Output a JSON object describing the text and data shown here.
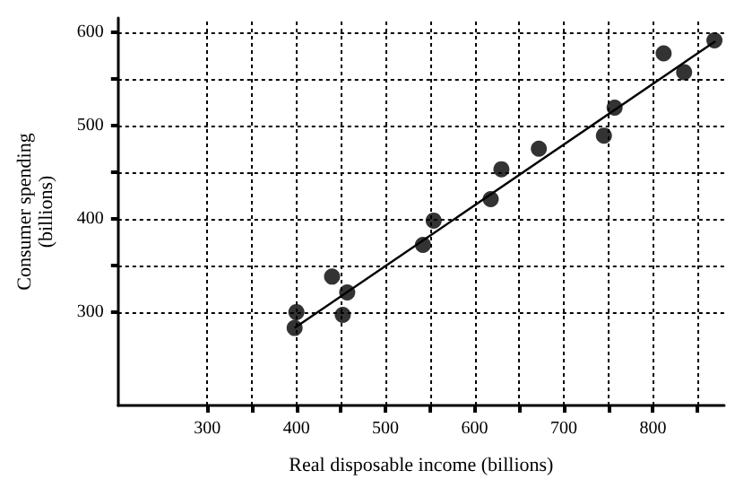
{
  "chart_data": {
    "type": "scatter",
    "xlabel": "Real disposable income (billions)",
    "ylabel": "Consumer spending\n(billions)",
    "xlim": [
      200,
      880
    ],
    "ylim": [
      200,
      615
    ],
    "xticks": [
      300,
      {
        "value": 350,
        "label": null
      },
      400,
      {
        "value": 450,
        "label": null
      },
      500,
      {
        "value": 550,
        "label": null
      },
      600,
      {
        "value": 650,
        "label": null
      },
      700,
      {
        "value": 750,
        "label": null
      },
      800,
      {
        "value": 850,
        "label": null
      }
    ],
    "yticks": [
      300,
      {
        "value": 350,
        "label": null
      },
      400,
      {
        "value": 450,
        "label": null
      },
      500,
      {
        "value": 550,
        "label": null
      },
      600
    ],
    "grid": true,
    "marker": "circle",
    "series": [
      {
        "color": "#000000",
        "x": [
          398,
          400,
          440,
          457,
          452,
          542,
          554,
          618,
          630,
          672,
          745,
          757,
          812,
          835,
          869
        ],
        "values": [
          283,
          300,
          338,
          321,
          297,
          372,
          398,
          421,
          453,
          475,
          489,
          519,
          577,
          557,
          591
        ]
      },
      {
        "type": "line",
        "color": "#000000",
        "x": [
          398,
          870
        ],
        "values": [
          283,
          590
        ],
        "marker": "none",
        "line_style": "solid"
      }
    ]
  }
}
